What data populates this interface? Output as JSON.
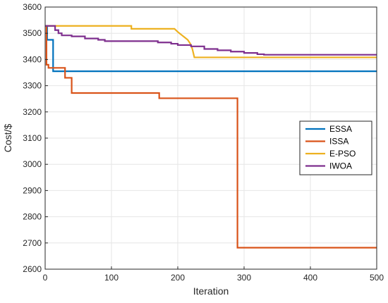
{
  "chart_data": {
    "type": "line",
    "title": "",
    "xlabel": "Iteration",
    "ylabel": "Cost/$",
    "xlim": [
      0,
      500
    ],
    "ylim": [
      2600,
      3600
    ],
    "xticks": [
      0,
      100,
      200,
      300,
      400,
      500
    ],
    "yticks": [
      2600,
      2700,
      2800,
      2900,
      3000,
      3100,
      3200,
      3300,
      3400,
      3500,
      3600
    ],
    "grid": true,
    "legend_position": "right",
    "series": [
      {
        "name": "ESSA",
        "color": "#0072BD",
        "x": [
          0,
          3,
          3,
          12,
          12,
          500
        ],
        "y": [
          3528,
          3528,
          3475,
          3475,
          3355,
          3355
        ]
      },
      {
        "name": "ISSA",
        "color": "#D95319",
        "x": [
          0,
          2,
          2,
          5,
          5,
          30,
          30,
          40,
          40,
          172,
          172,
          290,
          290,
          500
        ],
        "y": [
          3528,
          3528,
          3380,
          3380,
          3368,
          3368,
          3330,
          3330,
          3272,
          3272,
          3252,
          3252,
          2682,
          2682
        ]
      },
      {
        "name": "E-PSO",
        "color": "#EDB120",
        "x": [
          0,
          130,
          130,
          195,
          200,
          205,
          210,
          215,
          219,
          222,
          225,
          235,
          500
        ],
        "y": [
          3528,
          3528,
          3517,
          3517,
          3505,
          3495,
          3485,
          3475,
          3460,
          3440,
          3408,
          3408,
          3408
        ]
      },
      {
        "name": "IWOA",
        "color": "#7E2F8E",
        "x": [
          0,
          15,
          15,
          20,
          20,
          25,
          25,
          40,
          40,
          60,
          60,
          80,
          80,
          90,
          90,
          170,
          170,
          190,
          190,
          200,
          200,
          220,
          220,
          240,
          240,
          260,
          260,
          280,
          280,
          300,
          300,
          320,
          320,
          330,
          330,
          500
        ],
        "y": [
          3528,
          3528,
          3512,
          3512,
          3500,
          3500,
          3492,
          3492,
          3488,
          3488,
          3480,
          3480,
          3475,
          3475,
          3470,
          3470,
          3465,
          3465,
          3460,
          3460,
          3455,
          3455,
          3450,
          3450,
          3440,
          3440,
          3435,
          3435,
          3430,
          3430,
          3425,
          3425,
          3420,
          3420,
          3418,
          3418
        ]
      }
    ]
  }
}
